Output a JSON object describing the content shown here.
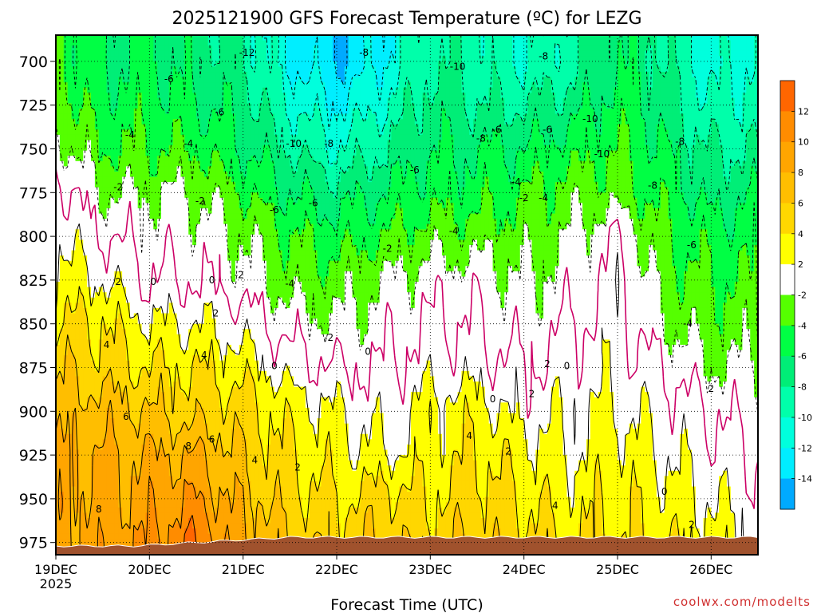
{
  "chart_data": {
    "type": "heatmap",
    "title": "2025121900 GFS Forecast Temperature (ºC) for LEZG",
    "xlabel": "Forecast Time (UTC)",
    "ylabel": "",
    "credit": "coolwx.com/modelts",
    "y_axis": {
      "unit": "hPa",
      "inverted": true,
      "range": [
        685,
        982
      ],
      "ticks": [
        700,
        725,
        750,
        775,
        800,
        825,
        850,
        875,
        900,
        925,
        950,
        975
      ]
    },
    "x_axis": {
      "unit": "hours since 2025-12-19 00 UTC",
      "range": [
        0,
        180
      ],
      "ticks": [
        {
          "hour": 0,
          "label": "19DEC",
          "sublabel": "2025"
        },
        {
          "hour": 24,
          "label": "20DEC"
        },
        {
          "hour": 48,
          "label": "21DEC"
        },
        {
          "hour": 72,
          "label": "22DEC"
        },
        {
          "hour": 96,
          "label": "23DEC"
        },
        {
          "hour": 120,
          "label": "24DEC"
        },
        {
          "hour": 144,
          "label": "25DEC"
        },
        {
          "hour": 168,
          "label": "26DEC"
        }
      ]
    },
    "grid": true,
    "colorbar": {
      "placement": "right",
      "labels": [
        12,
        10,
        8,
        6,
        4,
        2,
        -2,
        -4,
        -6,
        -8,
        -10,
        -12,
        -14
      ],
      "bands": [
        {
          "range": "> 12",
          "color": "#ff6600"
        },
        {
          "range": "10 to 12",
          "color": "#ff8c00"
        },
        {
          "range": "8 to 10",
          "color": "#ffa500"
        },
        {
          "range": "6 to 8",
          "color": "#ffbe00"
        },
        {
          "range": "4 to 6",
          "color": "#ffd700"
        },
        {
          "range": "2 to 4",
          "color": "#ffff00"
        },
        {
          "range": "-2 to 2",
          "color": "#ffffff"
        },
        {
          "range": "-4 to -2",
          "color": "#55ff00"
        },
        {
          "range": "-6 to -4",
          "color": "#00ff44"
        },
        {
          "range": "-8 to -6",
          "color": "#00ee77"
        },
        {
          "range": "-10 to -8",
          "color": "#00ffaa"
        },
        {
          "range": "-12 to -10",
          "color": "#00ffdd"
        },
        {
          "range": "-14 to -12",
          "color": "#00eeff"
        },
        {
          "range": "< -14",
          "color": "#00aaff"
        }
      ]
    },
    "surface_color": "#a0522d",
    "freezing_line_color": "#cc0066",
    "temperature_profiles": {
      "levels_hPa": [
        700,
        725,
        750,
        775,
        800,
        825,
        850,
        875,
        900,
        925,
        950,
        975
      ],
      "hours": [
        0,
        12,
        24,
        36,
        48,
        60,
        72,
        84,
        96,
        108,
        120,
        132,
        144,
        156,
        168,
        180
      ],
      "values": [
        [
          -4,
          -6,
          -6,
          -7,
          -8,
          -12,
          -14,
          -12,
          -8,
          -9,
          -10,
          -9,
          -6,
          -8,
          -11,
          -10
        ],
        [
          -3,
          -5,
          -5,
          -6,
          -7,
          -10,
          -12,
          -10,
          -7,
          -8,
          -8,
          -7,
          -5,
          -7,
          -10,
          -9
        ],
        [
          -1,
          -4,
          -4,
          -4,
          -6,
          -8,
          -10,
          -8,
          -6,
          -6,
          -6,
          -5,
          -4,
          -6,
          -8,
          -8
        ],
        [
          1,
          -2,
          -2,
          -2,
          -4,
          -6,
          -7,
          -6,
          -5,
          -5,
          -4,
          -3,
          -3,
          -5,
          -7,
          -6
        ],
        [
          2,
          0,
          -1,
          -1,
          -2,
          -4,
          -5,
          -4,
          -3,
          -3,
          -3,
          -2,
          0,
          -4,
          -5,
          -5
        ],
        [
          3,
          2,
          0,
          0,
          -1,
          -3,
          -3,
          -2,
          -1,
          -1,
          -2,
          -1,
          1,
          -3,
          -4,
          -4
        ],
        [
          4,
          4,
          2,
          2,
          1,
          -1,
          -2,
          -1,
          0,
          0,
          -1,
          0,
          1,
          -2,
          -3,
          -3
        ],
        [
          6,
          5,
          4,
          4,
          3,
          1,
          0,
          0,
          1,
          1,
          0,
          1,
          1,
          0,
          -2,
          -2
        ],
        [
          7,
          7,
          6,
          5,
          5,
          3,
          2,
          1,
          3,
          3,
          1,
          2,
          2,
          1,
          0,
          -1
        ],
        [
          8,
          8,
          8,
          8,
          6,
          4,
          3,
          2,
          3,
          4,
          3,
          2,
          3,
          2,
          1,
          0
        ],
        [
          9,
          8,
          9,
          10,
          7,
          5,
          4,
          5,
          4,
          5,
          4,
          3,
          4,
          3,
          2,
          1
        ],
        [
          9,
          9,
          10,
          12,
          8,
          6,
          5,
          6,
          5,
          6,
          5,
          4,
          4,
          4,
          3,
          2
        ]
      ]
    },
    "contour_labels": [
      {
        "text": "-12",
        "hour": 49,
        "p": 695
      },
      {
        "text": "-8",
        "hour": 79,
        "p": 695
      },
      {
        "text": "-8",
        "hour": 125,
        "p": 697
      },
      {
        "text": "-10",
        "hour": 103,
        "p": 703
      },
      {
        "text": "-6",
        "hour": 29,
        "p": 710
      },
      {
        "text": "-6",
        "hour": 42,
        "p": 729
      },
      {
        "text": "-10",
        "hour": 137,
        "p": 733
      },
      {
        "text": "-4",
        "hour": 19,
        "p": 742
      },
      {
        "text": "-4",
        "hour": 34,
        "p": 747
      },
      {
        "text": "-10",
        "hour": 61,
        "p": 747
      },
      {
        "text": "-8",
        "hour": 70,
        "p": 747
      },
      {
        "text": "-8",
        "hour": 109,
        "p": 744
      },
      {
        "text": "-6",
        "hour": 113,
        "p": 739
      },
      {
        "text": "-6",
        "hour": 126,
        "p": 739
      },
      {
        "text": "-8",
        "hour": 160,
        "p": 746
      },
      {
        "text": "-10",
        "hour": 140,
        "p": 753
      },
      {
        "text": "-6",
        "hour": 92,
        "p": 762
      },
      {
        "text": "-4",
        "hour": 118,
        "p": 769
      },
      {
        "text": "-2",
        "hour": 16,
        "p": 772
      },
      {
        "text": "-2",
        "hour": 37,
        "p": 780
      },
      {
        "text": "-6",
        "hour": 56,
        "p": 785
      },
      {
        "text": "-6",
        "hour": 66,
        "p": 781
      },
      {
        "text": "-2",
        "hour": 120,
        "p": 778
      },
      {
        "text": "-4",
        "hour": 125,
        "p": 778
      },
      {
        "text": "-8",
        "hour": 153,
        "p": 771
      },
      {
        "text": "-4",
        "hour": 102,
        "p": 797
      },
      {
        "text": "-2",
        "hour": 85,
        "p": 807
      },
      {
        "text": "-6",
        "hour": 163,
        "p": 805
      },
      {
        "text": "-2",
        "hour": 47,
        "p": 822
      },
      {
        "text": "2",
        "hour": 16,
        "p": 826
      },
      {
        "text": "0",
        "hour": 25,
        "p": 826
      },
      {
        "text": "0",
        "hour": 40,
        "p": 825
      },
      {
        "text": "-4",
        "hour": 60,
        "p": 827
      },
      {
        "text": "2",
        "hour": 41,
        "p": 844
      },
      {
        "text": "-2",
        "hour": 70,
        "p": 858
      },
      {
        "text": "-4",
        "hour": 162,
        "p": 850
      },
      {
        "text": "4",
        "hour": 13,
        "p": 862
      },
      {
        "text": "4",
        "hour": 38,
        "p": 868
      },
      {
        "text": "0",
        "hour": 80,
        "p": 866
      },
      {
        "text": "0",
        "hour": 56,
        "p": 874
      },
      {
        "text": "2",
        "hour": 126,
        "p": 873
      },
      {
        "text": "0",
        "hour": 131,
        "p": 874
      },
      {
        "text": "0",
        "hour": 112,
        "p": 893
      },
      {
        "text": "2",
        "hour": 122,
        "p": 890
      },
      {
        "text": "2",
        "hour": 168,
        "p": 887
      },
      {
        "text": "6",
        "hour": 18,
        "p": 903
      },
      {
        "text": "6",
        "hour": 40,
        "p": 916
      },
      {
        "text": "8",
        "hour": 34,
        "p": 920
      },
      {
        "text": "4",
        "hour": 51,
        "p": 928
      },
      {
        "text": "2",
        "hour": 62,
        "p": 932
      },
      {
        "text": "4",
        "hour": 106,
        "p": 914
      },
      {
        "text": "2",
        "hour": 116,
        "p": 923
      },
      {
        "text": "8",
        "hour": 11,
        "p": 956
      },
      {
        "text": "4",
        "hour": 128,
        "p": 954
      },
      {
        "text": "0",
        "hour": 156,
        "p": 946
      },
      {
        "text": "2",
        "hour": 163,
        "p": 965
      }
    ]
  }
}
